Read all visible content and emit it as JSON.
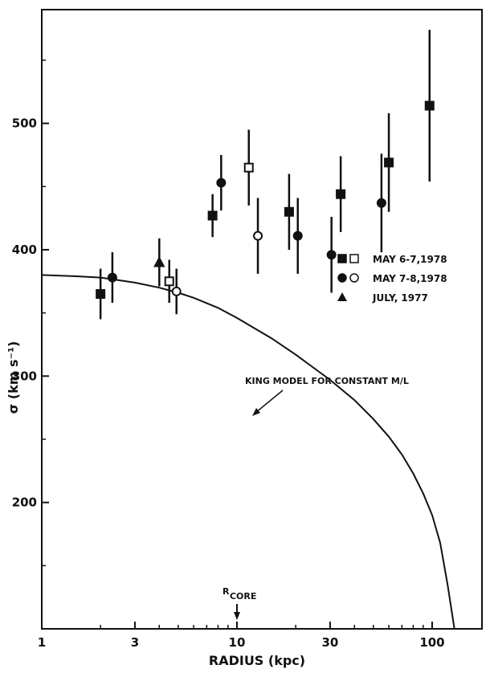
{
  "chart_data": {
    "type": "scatter",
    "xlabel": "RADIUS (kpc)",
    "ylabel": "σ (km s⁻¹)",
    "xscale": "log",
    "xlim": [
      1,
      180
    ],
    "ylim": [
      100,
      590
    ],
    "xticks": [
      1,
      3,
      10,
      30,
      100
    ],
    "yticks": [
      200,
      300,
      400,
      500
    ],
    "grid": false,
    "legend_position": "right",
    "legend": [
      {
        "label": "MAY 6-7,1978",
        "markers": [
          "filled-square",
          "open-square"
        ]
      },
      {
        "label": "MAY 7-8,1978",
        "markers": [
          "filled-circle",
          "open-circle"
        ]
      },
      {
        "label": "JULY, 1977",
        "markers": [
          "filled-triangle"
        ]
      }
    ],
    "series": [
      {
        "name": "MAY 6-7,1978",
        "marker": "square",
        "points": [
          {
            "x": 2.0,
            "y": 365,
            "err": 20,
            "filled": true
          },
          {
            "x": 4.5,
            "y": 375,
            "err": 17,
            "filled": false
          },
          {
            "x": 7.5,
            "y": 427,
            "err": 17,
            "filled": true
          },
          {
            "x": 11.5,
            "y": 465,
            "err": 30,
            "filled": false
          },
          {
            "x": 18.5,
            "y": 430,
            "err": 30,
            "filled": true
          },
          {
            "x": 34,
            "y": 444,
            "err": 30,
            "filled": true
          },
          {
            "x": 60,
            "y": 469,
            "err": 39,
            "filled": true
          },
          {
            "x": 97,
            "y": 514,
            "err": 60,
            "filled": true
          }
        ]
      },
      {
        "name": "MAY 7-8,1978",
        "marker": "circle",
        "points": [
          {
            "x": 2.3,
            "y": 378,
            "err": 20,
            "filled": true
          },
          {
            "x": 4.9,
            "y": 367,
            "err": 18,
            "filled": false
          },
          {
            "x": 8.3,
            "y": 453,
            "err": 22,
            "filled": true
          },
          {
            "x": 12.8,
            "y": 411,
            "err": 30,
            "filled": false
          },
          {
            "x": 20.5,
            "y": 411,
            "err": 30,
            "filled": true
          },
          {
            "x": 30.5,
            "y": 396,
            "err": 30,
            "filled": true
          },
          {
            "x": 55,
            "y": 437,
            "err": 39,
            "filled": true
          }
        ]
      },
      {
        "name": "JULY, 1977",
        "marker": "triangle",
        "points": [
          {
            "x": 4.0,
            "y": 390,
            "err": 19,
            "filled": true
          }
        ]
      }
    ],
    "model_curve": {
      "label": "KING MODEL FOR CONSTANT M/L",
      "x": [
        1,
        1.5,
        2,
        3,
        4,
        5,
        6,
        8,
        10,
        15,
        20,
        30,
        40,
        50,
        60,
        70,
        80,
        90,
        100,
        110,
        120,
        130
      ],
      "y": [
        380,
        379,
        378,
        374,
        370,
        366,
        362,
        354,
        346,
        330,
        317,
        297,
        281,
        266,
        252,
        238,
        223,
        207,
        190,
        168,
        135,
        100
      ]
    },
    "annotations": [
      {
        "label": "R",
        "sublabel": "CORE",
        "x": 10
      }
    ]
  }
}
